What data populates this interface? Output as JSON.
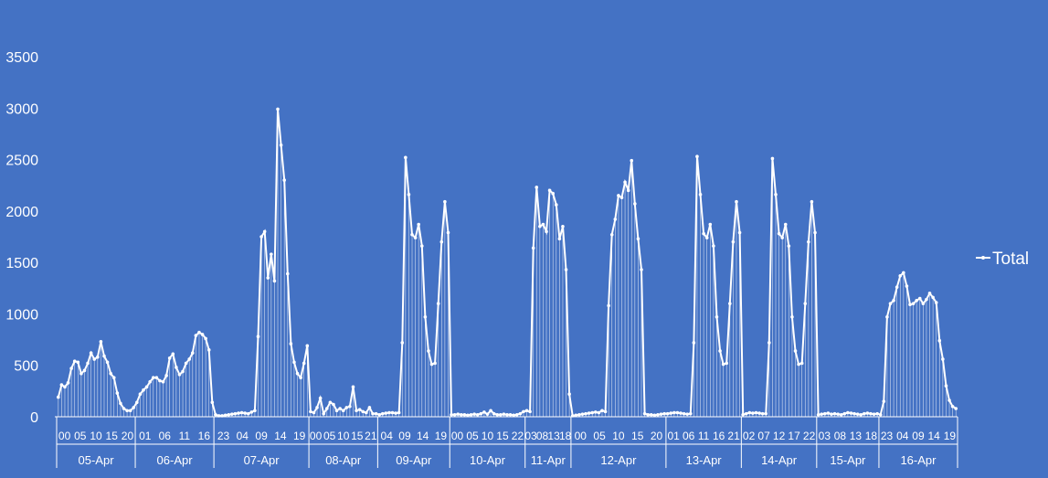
{
  "chart_data": {
    "type": "line",
    "title": "",
    "xlabel": "",
    "ylabel": "",
    "ylim": [
      0,
      3500
    ],
    "yticks": [
      0,
      500,
      1000,
      1500,
      2000,
      2500,
      3000,
      3500
    ],
    "grid": false,
    "legend_position": "right",
    "colors": {
      "background": "#4472C4",
      "series": "#FFFFFF"
    },
    "series": [
      {
        "name": "Total",
        "days": [
          {
            "label": "05-Apr",
            "hour_labels": [
              "00",
              "05",
              "10",
              "15",
              "20"
            ],
            "values": [
              190,
              310,
              290,
              330,
              470,
              540,
              530,
              420,
              450,
              520,
              620,
              560,
              580,
              730,
              590,
              530,
              420,
              380,
              230,
              130,
              80,
              60,
              60,
              90
            ]
          },
          {
            "label": "06-Apr",
            "hour_labels": [
              "01",
              "06",
              "11",
              "16"
            ],
            "values": [
              140,
              220,
              260,
              290,
              340,
              380,
              380,
              350,
              340,
              400,
              570,
              610,
              480,
              410,
              440,
              520,
              560,
              620,
              790,
              820,
              800,
              760,
              650,
              140
            ]
          },
          {
            "label": "07-Apr",
            "hour_labels": [
              "23",
              "04",
              "09",
              "14",
              "19"
            ],
            "values": [
              20,
              10,
              10,
              15,
              20,
              25,
              30,
              35,
              40,
              35,
              30,
              45,
              60,
              780,
              1750,
              1800,
              1350,
              1580,
              1320,
              2990,
              2640,
              2300,
              1390,
              710,
              530,
              420,
              380,
              520,
              690
            ]
          },
          {
            "label": "08-Apr",
            "hour_labels": [
              "00",
              "05",
              "10",
              "15",
              "21"
            ],
            "values": [
              50,
              40,
              90,
              180,
              30,
              80,
              140,
              120,
              60,
              80,
              60,
              90,
              100,
              290,
              60,
              70,
              50,
              40,
              90,
              30,
              30
            ]
          },
          {
            "label": "09-Apr",
            "hour_labels": [
              "04",
              "09",
              "14",
              "19"
            ],
            "values": [
              20,
              30,
              35,
              40,
              40,
              35,
              40,
              720,
              2520,
              2160,
              1770,
              1740,
              1870,
              1660,
              970,
              640,
              510,
              520,
              1100,
              1700,
              2090,
              1790
            ]
          },
          {
            "label": "10-Apr",
            "hour_labels": [
              "00",
              "05",
              "10",
              "15",
              "22"
            ],
            "values": [
              20,
              20,
              25,
              20,
              20,
              15,
              20,
              25,
              20,
              30,
              45,
              25,
              60,
              30,
              20,
              20,
              25,
              20,
              20,
              15,
              20,
              30,
              50
            ]
          },
          {
            "label": "11-Apr",
            "hour_labels": [
              "03",
              "08",
              "13",
              "18"
            ],
            "values": [
              60,
              50,
              1640,
              2230,
              1850,
              1870,
              1800,
              2200,
              2170,
              2060,
              1730,
              1850,
              1430,
              220
            ]
          },
          {
            "label": "12-Apr",
            "hour_labels": [
              "00",
              "05",
              "10",
              "15",
              "20"
            ],
            "values": [
              10,
              15,
              20,
              25,
              30,
              35,
              40,
              45,
              40,
              60,
              50,
              1080,
              1770,
              1920,
              2150,
              2130,
              2280,
              2200,
              2490,
              2070,
              1730,
              1430,
              30,
              20,
              20,
              15,
              20,
              25,
              30
            ]
          },
          {
            "label": "13-Apr",
            "hour_labels": [
              "01",
              "06",
              "11",
              "16",
              "21"
            ],
            "values": [
              30,
              35,
              40,
              40,
              35,
              30,
              25,
              30,
              720,
              2530,
              2160,
              1780,
              1740,
              1870,
              1660,
              970,
              640,
              510,
              520,
              1100,
              1700,
              2090,
              1790
            ]
          },
          {
            "label": "14-Apr",
            "hour_labels": [
              "02",
              "07",
              "12",
              "17",
              "22"
            ],
            "values": [
              20,
              30,
              40,
              35,
              40,
              35,
              30,
              30,
              720,
              2510,
              2160,
              1780,
              1740,
              1870,
              1660,
              970,
              640,
              510,
              520,
              1100,
              1700,
              2090,
              1790
            ]
          },
          {
            "label": "15-Apr",
            "hour_labels": [
              "03",
              "08",
              "13",
              "18"
            ],
            "values": [
              20,
              25,
              30,
              35,
              25,
              30,
              25,
              20,
              30,
              40,
              35,
              30,
              25,
              20,
              30,
              35,
              30,
              25,
              30
            ]
          },
          {
            "label": "16-Apr",
            "hour_labels": [
              "23",
              "04",
              "09",
              "14",
              "19"
            ],
            "values": [
              20,
              150,
              970,
              1100,
              1130,
              1260,
              1370,
              1400,
              1270,
              1090,
              1100,
              1130,
              1150,
              1100,
              1140,
              1200,
              1160,
              1110,
              740,
              560,
              300,
              160,
              100,
              80
            ]
          }
        ]
      }
    ]
  }
}
